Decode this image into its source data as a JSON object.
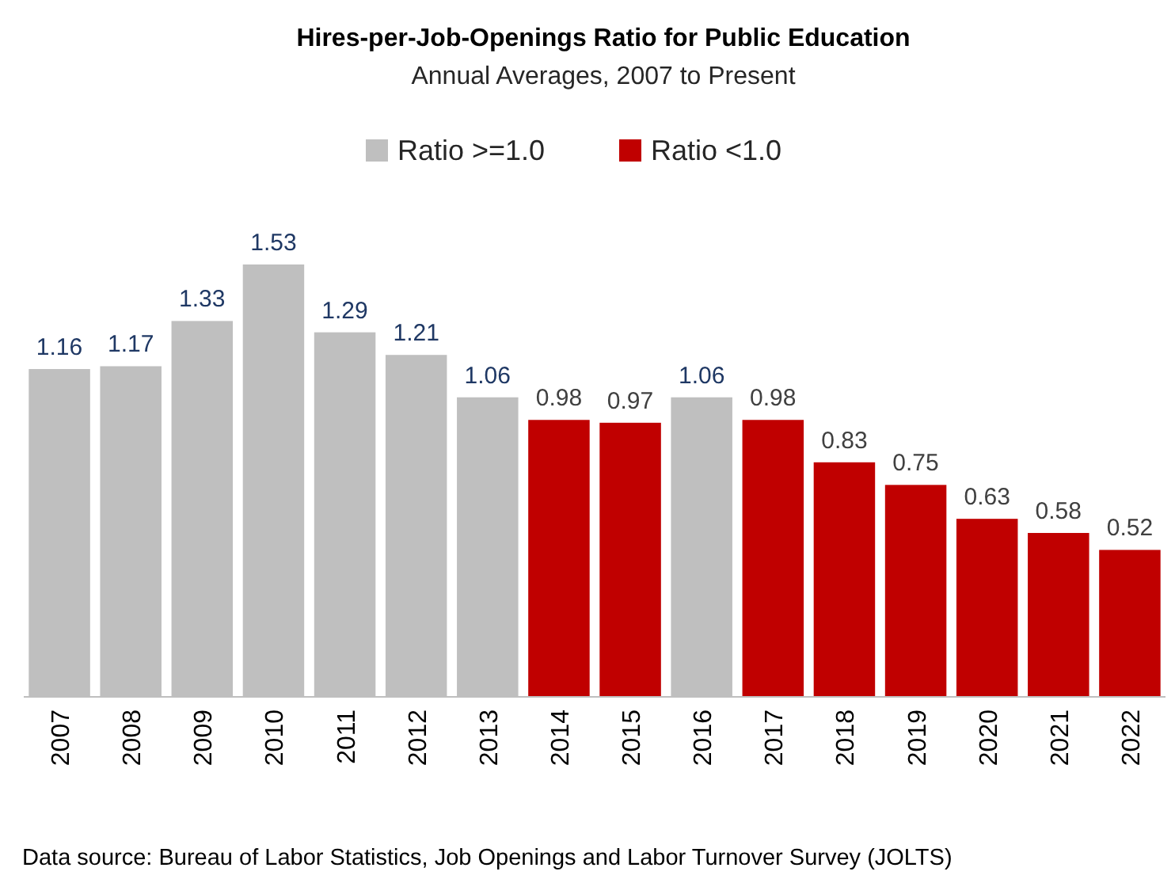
{
  "chart_data": {
    "type": "bar",
    "title": "Hires-per-Job-Openings Ratio for Public Education",
    "subtitle": "Annual Averages, 2007 to Present",
    "categories": [
      "2007",
      "2008",
      "2009",
      "2010",
      "2011",
      "2012",
      "2013",
      "2014",
      "2015",
      "2016",
      "2017",
      "2018",
      "2019",
      "2020",
      "2021",
      "2022"
    ],
    "series": [
      {
        "name": "Ratio >=1.0",
        "color": "#bfbfbf",
        "values": [
          1.16,
          1.17,
          1.33,
          1.53,
          1.29,
          1.21,
          1.06,
          null,
          null,
          1.06,
          null,
          null,
          null,
          null,
          null,
          null
        ]
      },
      {
        "name": "Ratio <1.0",
        "color": "#c00000",
        "values": [
          null,
          null,
          null,
          null,
          null,
          null,
          null,
          0.98,
          0.97,
          null,
          0.98,
          0.83,
          0.75,
          0.63,
          0.58,
          0.52
        ]
      }
    ],
    "stacked": true,
    "data_labels": true,
    "legend": "top",
    "annotations": [
      "Data source: Bureau of Labor Statistics, Job Openings and Labor Turnover Survey (JOLTS)"
    ]
  }
}
